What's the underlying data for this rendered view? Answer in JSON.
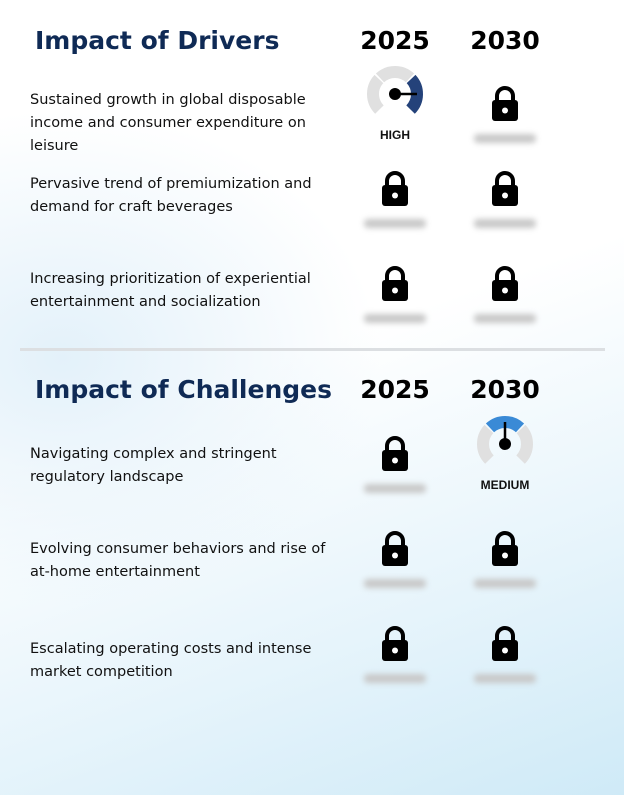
{
  "drivers": {
    "title": "Impact of Drivers",
    "year1": "2025",
    "year2": "2030",
    "rows": [
      {
        "text": "Sustained growth in global disposable income and consumer expenditure on leisure",
        "y2025": {
          "type": "gauge",
          "level": "HIGH"
        },
        "y2030": {
          "type": "locked"
        }
      },
      {
        "text": "Pervasive trend of premiumization and demand for craft beverages",
        "y2025": {
          "type": "locked"
        },
        "y2030": {
          "type": "locked"
        }
      },
      {
        "text": "Increasing prioritization of experiential entertainment and socialization",
        "y2025": {
          "type": "locked"
        },
        "y2030": {
          "type": "locked"
        }
      }
    ]
  },
  "challenges": {
    "title": "Impact of Challenges",
    "year1": "2025",
    "year2": "2030",
    "rows": [
      {
        "text": "Navigating complex and stringent regulatory landscape",
        "y2025": {
          "type": "locked"
        },
        "y2030": {
          "type": "gauge",
          "level": "MEDIUM"
        }
      },
      {
        "text": "Evolving consumer behaviors and rise of at-home entertainment",
        "y2025": {
          "type": "locked"
        },
        "y2030": {
          "type": "locked"
        }
      },
      {
        "text": "Escalating operating costs and intense market competition",
        "y2025": {
          "type": "locked"
        },
        "y2030": {
          "type": "locked"
        }
      }
    ]
  },
  "colors": {
    "high": "#24427a",
    "medium": "#3a8ad6",
    "gauge_bg": "#e0e0e0"
  },
  "icons": {
    "locked": "lock-icon",
    "gauge": "gauge-icon"
  }
}
